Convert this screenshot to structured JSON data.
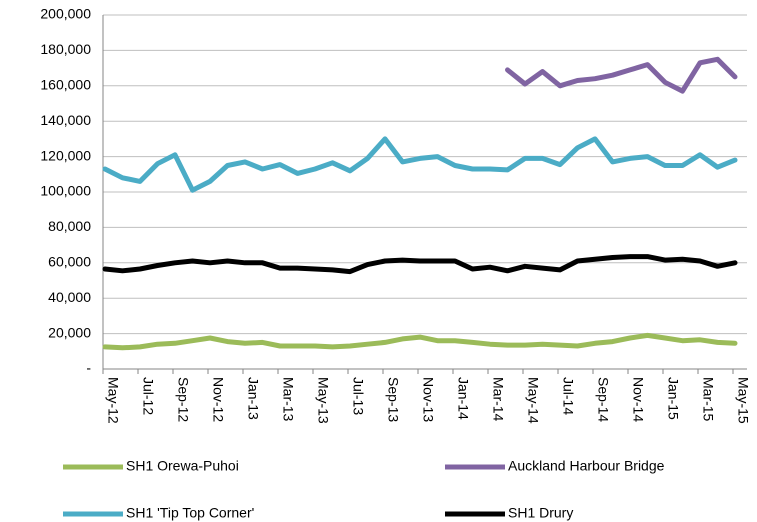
{
  "chart_data": {
    "type": "line",
    "categories": [
      "May-12",
      null,
      "Jul-12",
      null,
      "Sep-12",
      null,
      "Nov-12",
      null,
      "Jan-13",
      null,
      "Mar-13",
      null,
      "May-13",
      null,
      "Jul-13",
      null,
      "Sep-13",
      null,
      "Nov-13",
      null,
      "Jan-14",
      null,
      "Mar-14",
      null,
      "May-14",
      null,
      "Jul-14",
      null,
      "Sep-14",
      null,
      "Nov-14",
      null,
      "Jan-15",
      null,
      "Mar-15",
      null,
      "May-15"
    ],
    "series": [
      {
        "name": "SH1 Orewa-Puhoi",
        "color": "#9bbb59",
        "values": [
          12500,
          12000,
          12500,
          14000,
          14500,
          16000,
          17500,
          15500,
          14500,
          15000,
          13000,
          13000,
          13000,
          12500,
          13000,
          14000,
          15000,
          17000,
          18000,
          16000,
          16000,
          15000,
          14000,
          13500,
          13500,
          14000,
          13500,
          13000,
          14500,
          15500,
          17500,
          19000,
          17500,
          16000,
          16500,
          15000,
          14500
        ]
      },
      {
        "name": "Auckland Harbour Bridge",
        "color": "#8064a2",
        "values": [
          null,
          null,
          null,
          null,
          null,
          null,
          null,
          null,
          null,
          null,
          null,
          null,
          null,
          null,
          null,
          null,
          null,
          null,
          null,
          null,
          null,
          null,
          null,
          169000,
          161000,
          168000,
          160000,
          163000,
          164000,
          166000,
          169000,
          172000,
          162000,
          157000,
          173000,
          175000,
          165000
        ]
      },
      {
        "name": "SH1 'Tip Top Corner'",
        "color": "#4bacc6",
        "values": [
          113000,
          108000,
          106000,
          116000,
          121000,
          101000,
          106000,
          115000,
          117000,
          113000,
          115500,
          110500,
          113000,
          116500,
          112000,
          119000,
          130000,
          117000,
          119000,
          120000,
          115000,
          113000,
          113000,
          112500,
          119000,
          119000,
          115500,
          125000,
          130000,
          117000,
          119000,
          120000,
          115000,
          115000,
          121000,
          114000,
          118000
        ]
      },
      {
        "name": "SH1 Drury",
        "color": "#000000",
        "values": [
          56500,
          55500,
          56500,
          58500,
          60000,
          61000,
          60000,
          61000,
          60000,
          60000,
          57000,
          57000,
          56500,
          56000,
          55000,
          59000,
          61000,
          61500,
          61000,
          61000,
          61000,
          56500,
          57500,
          55500,
          58000,
          57000,
          56000,
          61000,
          62000,
          63000,
          63500,
          63500,
          61500,
          62000,
          61000,
          58000,
          60000
        ]
      }
    ],
    "ylim": [
      0,
      200000
    ],
    "yticks": [
      {
        "value": 0,
        "label": "-"
      },
      {
        "value": 20000,
        "label": "20,000"
      },
      {
        "value": 40000,
        "label": "40,000"
      },
      {
        "value": 60000,
        "label": "60,000"
      },
      {
        "value": 80000,
        "label": "80,000"
      },
      {
        "value": 100000,
        "label": "100,000"
      },
      {
        "value": 120000,
        "label": "120,000"
      },
      {
        "value": 140000,
        "label": "140,000"
      },
      {
        "value": 160000,
        "label": "160,000"
      },
      {
        "value": 180000,
        "label": "180,000"
      },
      {
        "value": 200000,
        "label": "200,000"
      }
    ],
    "grid": true,
    "legend": "bottom"
  }
}
